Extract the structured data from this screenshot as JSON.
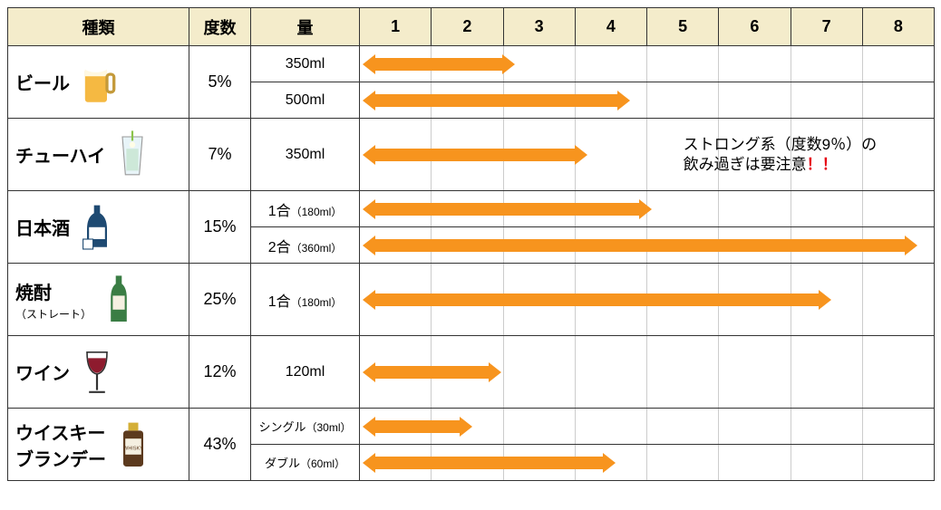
{
  "headers": {
    "type": "種類",
    "abv": "度数",
    "amount": "量",
    "scale_ticks": [
      "1",
      "2",
      "3",
      "4",
      "5",
      "6",
      "7",
      "8"
    ]
  },
  "chart": {
    "scale_max": 8,
    "bar_color": "#f7941e",
    "header_bg": "#f4eccb",
    "border_color": "#333333",
    "grid_color": "#cccccc"
  },
  "note": {
    "line1": "ストロング系（度数9％）の",
    "line2_a": "飲み過ぎは要注意",
    "line2_b": "！！",
    "left_units": 4.5
  },
  "rows": [
    {
      "type_label": "ビール",
      "type_sub": "",
      "abv": "5%",
      "icon": "beer",
      "amounts": [
        {
          "label": "350ml",
          "small": "",
          "value": 2.2
        },
        {
          "label": "500ml",
          "small": "",
          "value": 3.8
        }
      ]
    },
    {
      "type_label": "チューハイ",
      "type_sub": "",
      "abv": "7%",
      "icon": "chuhai",
      "tall": true,
      "amounts": [
        {
          "label": "350ml",
          "small": "",
          "value": 3.2,
          "note": true
        }
      ]
    },
    {
      "type_label": "日本酒",
      "type_sub": "",
      "abv": "15%",
      "icon": "sake",
      "amounts": [
        {
          "label": "1合",
          "small": "（180ml）",
          "value": 4.1
        },
        {
          "label": "2合",
          "small": "（360ml）",
          "value": 7.8
        }
      ]
    },
    {
      "type_label": "焼酎",
      "type_sub": "（ストレート）",
      "abv": "25%",
      "icon": "shochu",
      "tall": true,
      "amounts": [
        {
          "label": "1合",
          "small": "（180ml）",
          "value": 6.6
        }
      ]
    },
    {
      "type_label": "ワイン",
      "type_sub": "",
      "abv": "12%",
      "icon": "wine",
      "tall": true,
      "amounts": [
        {
          "label": "120ml",
          "small": "",
          "value": 2.0
        }
      ]
    },
    {
      "type_label": "ウイスキー\nブランデー",
      "type_sub": "",
      "abv": "43%",
      "icon": "whisky",
      "amounts": [
        {
          "label": "シングル",
          "small": "（30ml）",
          "value": 1.6,
          "label_small": true
        },
        {
          "label": "ダブル",
          "small": "（60ml）",
          "value": 3.6,
          "label_small": true
        }
      ]
    }
  ]
}
